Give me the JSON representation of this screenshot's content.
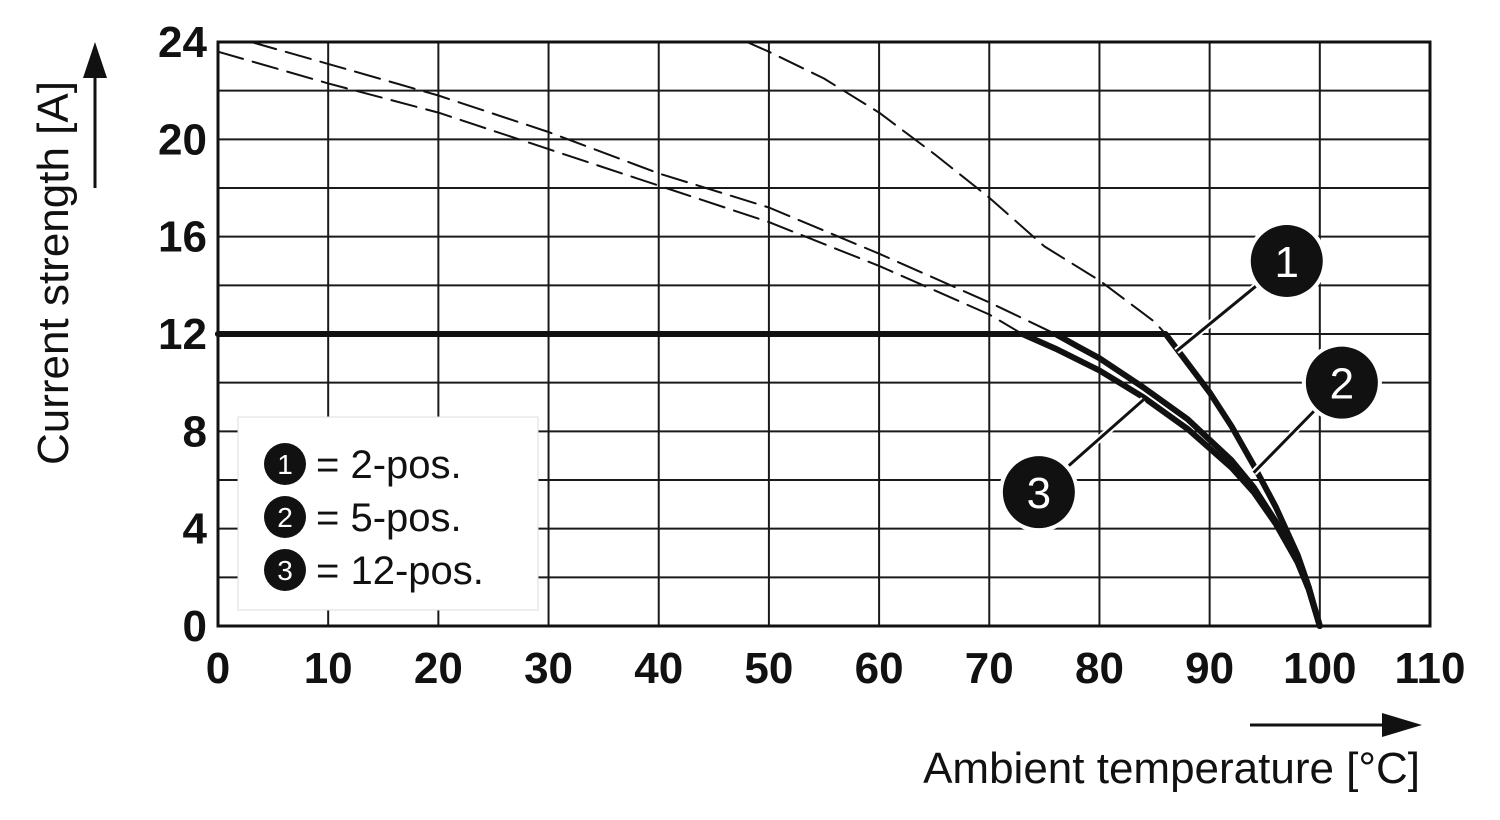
{
  "chart_data": {
    "type": "line",
    "xlabel": "Ambient temperature [°C]",
    "ylabel": "Current strength [A]",
    "xlim": [
      0,
      110
    ],
    "ylim": [
      0,
      24
    ],
    "x_ticks": [
      "0",
      "10",
      "20",
      "30",
      "40",
      "50",
      "60",
      "70",
      "80",
      "90",
      "100",
      "110"
    ],
    "y_ticks": [
      "0",
      "4",
      "8",
      "12",
      "16",
      "20",
      "24"
    ],
    "grid": true,
    "legend_position": "bottom-left",
    "legend": [
      {
        "marker": "1",
        "label": "= 2-pos."
      },
      {
        "marker": "2",
        "label": "= 5-pos."
      },
      {
        "marker": "3",
        "label": "= 12-pos."
      }
    ],
    "series": [
      {
        "marker": "1",
        "style": "solid",
        "points": [
          [
            0,
            12
          ],
          [
            86,
            12
          ],
          [
            88,
            10.8
          ],
          [
            90,
            9.6
          ],
          [
            92,
            8.2
          ],
          [
            94,
            6.6
          ],
          [
            96,
            4.9
          ],
          [
            98,
            2.9
          ],
          [
            99,
            1.6
          ],
          [
            100,
            0
          ]
        ]
      },
      {
        "marker": "2",
        "style": "solid",
        "points": [
          [
            0,
            12
          ],
          [
            76,
            12
          ],
          [
            78,
            11.5
          ],
          [
            80,
            11
          ],
          [
            84,
            9.8
          ],
          [
            88,
            8.5
          ],
          [
            92,
            6.8
          ],
          [
            94,
            5.7
          ],
          [
            96,
            4.3
          ],
          [
            98,
            2.6
          ],
          [
            99,
            1.5
          ],
          [
            100,
            0
          ]
        ]
      },
      {
        "marker": "3",
        "style": "solid",
        "points": [
          [
            0,
            12
          ],
          [
            73,
            12
          ],
          [
            76,
            11.4
          ],
          [
            80,
            10.5
          ],
          [
            84,
            9.4
          ],
          [
            88,
            8.1
          ],
          [
            92,
            6.5
          ],
          [
            94,
            5.5
          ],
          [
            96,
            4.2
          ],
          [
            98,
            2.6
          ],
          [
            99,
            1.5
          ],
          [
            100,
            0
          ]
        ]
      },
      {
        "marker": "1",
        "style": "dashed",
        "points": [
          [
            48,
            24
          ],
          [
            50,
            23.6
          ],
          [
            55,
            22.5
          ],
          [
            60,
            21.1
          ],
          [
            65,
            19.4
          ],
          [
            70,
            17.6
          ],
          [
            75,
            15.6
          ],
          [
            80,
            14.2
          ],
          [
            85,
            12.5
          ],
          [
            86,
            12
          ]
        ]
      },
      {
        "marker": "2",
        "style": "dashed",
        "points": [
          [
            3,
            24
          ],
          [
            10,
            23.1
          ],
          [
            20,
            21.8
          ],
          [
            30,
            20.3
          ],
          [
            40,
            18.6
          ],
          [
            50,
            17.2
          ],
          [
            60,
            15.3
          ],
          [
            70,
            13.3
          ],
          [
            76,
            12
          ]
        ]
      },
      {
        "marker": "3",
        "style": "dashed",
        "points": [
          [
            0,
            23.6
          ],
          [
            10,
            22.3
          ],
          [
            20,
            21.1
          ],
          [
            30,
            19.6
          ],
          [
            40,
            18.1
          ],
          [
            50,
            16.6
          ],
          [
            60,
            14.8
          ],
          [
            70,
            12.8
          ],
          [
            73,
            12
          ]
        ]
      }
    ],
    "callouts": [
      {
        "marker": "1",
        "badge": [
          97,
          15
        ],
        "target": [
          87,
          11.3
        ]
      },
      {
        "marker": "2",
        "badge": [
          102,
          10
        ],
        "target": [
          94,
          6.3
        ]
      },
      {
        "marker": "3",
        "badge": [
          74.5,
          5.5
        ],
        "target": [
          84,
          9.3
        ]
      }
    ]
  }
}
